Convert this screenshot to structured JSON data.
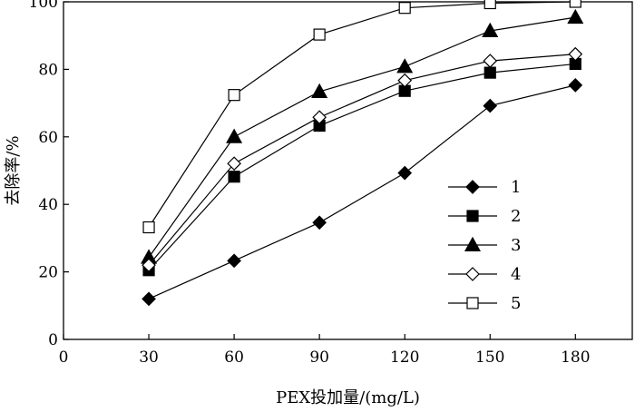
{
  "chart_data": {
    "type": "line",
    "xlabel": "PEX投加量/(mg/L)",
    "ylabel": "去除率/%",
    "xlim": [
      0,
      200
    ],
    "ylim": [
      0,
      100
    ],
    "x_ticks": [
      "0",
      "30",
      "60",
      "90",
      "120",
      "150",
      "180"
    ],
    "y_ticks": [
      "0",
      "20",
      "40",
      "60",
      "80",
      "100"
    ],
    "x": [
      30,
      60,
      90,
      120,
      150,
      180
    ],
    "grid": false,
    "legend_position": "right",
    "series": [
      {
        "name": "1",
        "marker": "diamond-filled",
        "values": [
          12.0,
          23.3,
          34.6,
          49.3,
          69.2,
          75.3
        ]
      },
      {
        "name": "2",
        "marker": "square-filled",
        "values": [
          20.5,
          48.2,
          63.3,
          73.6,
          79.0,
          81.6
        ]
      },
      {
        "name": "3",
        "marker": "triangle-filled",
        "values": [
          24.3,
          60.0,
          73.4,
          80.8,
          91.4,
          95.4
        ]
      },
      {
        "name": "4",
        "marker": "diamond-open",
        "values": [
          22.0,
          52.1,
          65.8,
          76.7,
          82.5,
          84.5
        ]
      },
      {
        "name": "5",
        "marker": "square-open",
        "values": [
          33.2,
          72.4,
          90.3,
          98.2,
          99.6,
          100.0
        ]
      }
    ]
  }
}
